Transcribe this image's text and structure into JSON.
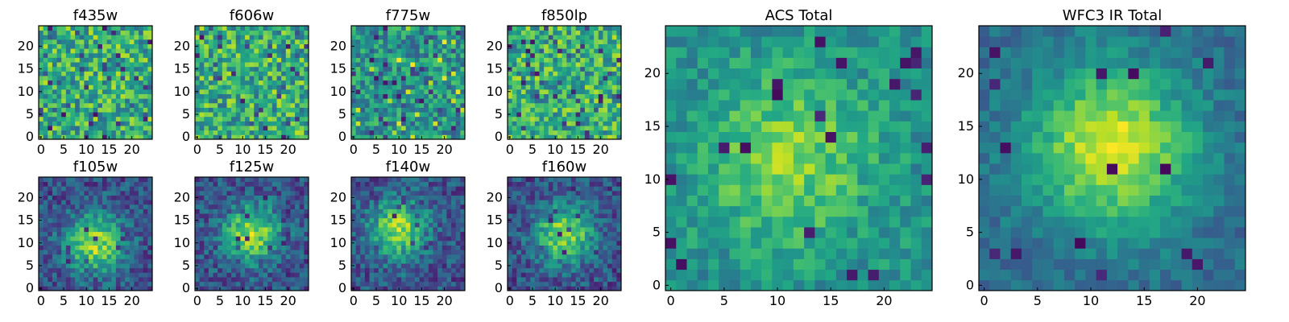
{
  "figure": {
    "colormap": "viridis"
  },
  "chart_data": [
    {
      "type": "heatmap",
      "title": "f435w",
      "grid_size": 25,
      "pattern": "noise",
      "seed": 11,
      "xticks": [
        "0",
        "5",
        "10",
        "15",
        "20"
      ],
      "yticks": [
        "0",
        "5",
        "10",
        "15",
        "20"
      ]
    },
    {
      "type": "heatmap",
      "title": "f606w",
      "grid_size": 25,
      "pattern": "noise",
      "seed": 23,
      "xticks": [
        "0",
        "5",
        "10",
        "15",
        "20"
      ],
      "yticks": [
        "0",
        "5",
        "10",
        "15",
        "20"
      ]
    },
    {
      "type": "heatmap",
      "title": "f775w",
      "grid_size": 25,
      "pattern": "noise-dim",
      "seed": 37,
      "xticks": [
        "0",
        "5",
        "10",
        "15",
        "20"
      ],
      "yticks": [
        "0",
        "5",
        "10",
        "15",
        "20"
      ]
    },
    {
      "type": "heatmap",
      "title": "f850lp",
      "grid_size": 25,
      "pattern": "noise",
      "seed": 41,
      "xticks": [
        "0",
        "5",
        "10",
        "15",
        "20"
      ],
      "yticks": [
        "0",
        "5",
        "10",
        "15",
        "20"
      ]
    },
    {
      "type": "heatmap",
      "title": "f105w",
      "grid_size": 25,
      "pattern": "blob",
      "center": [
        12,
        10
      ],
      "seed": 53,
      "xticks": [
        "0",
        "5",
        "10",
        "15",
        "20"
      ],
      "yticks": [
        "0",
        "5",
        "10",
        "15",
        "20"
      ]
    },
    {
      "type": "heatmap",
      "title": "f125w",
      "grid_size": 25,
      "pattern": "blob",
      "center": [
        12,
        12
      ],
      "seed": 67,
      "xticks": [
        "0",
        "5",
        "10",
        "15",
        "20"
      ],
      "yticks": [
        "0",
        "5",
        "10",
        "15",
        "20"
      ]
    },
    {
      "type": "heatmap",
      "title": "f140w",
      "grid_size": 25,
      "pattern": "blob",
      "center": [
        10,
        13
      ],
      "seed": 71,
      "xticks": [
        "0",
        "5",
        "10",
        "15",
        "20"
      ],
      "yticks": [
        "0",
        "5",
        "10",
        "15",
        "20"
      ]
    },
    {
      "type": "heatmap",
      "title": "f160w",
      "grid_size": 25,
      "pattern": "blob",
      "center": [
        12,
        12
      ],
      "seed": 83,
      "xticks": [
        "0",
        "5",
        "10",
        "15",
        "20"
      ],
      "yticks": [
        "0",
        "5",
        "10",
        "15",
        "20"
      ]
    },
    {
      "type": "heatmap",
      "title": "ACS Total",
      "grid_size": 25,
      "pattern": "noise-smooth",
      "center": [
        11,
        12
      ],
      "seed": 97,
      "xticks": [
        "0",
        "5",
        "10",
        "15",
        "20"
      ],
      "yticks": [
        "0",
        "5",
        "10",
        "15",
        "20"
      ]
    },
    {
      "type": "heatmap",
      "title": "WFC3 IR Total",
      "grid_size": 25,
      "pattern": "blob-smooth",
      "center": [
        12,
        13
      ],
      "seed": 101,
      "xticks": [
        "0",
        "5",
        "10",
        "15",
        "20"
      ],
      "yticks": [
        "0",
        "5",
        "10",
        "15",
        "20"
      ]
    }
  ]
}
